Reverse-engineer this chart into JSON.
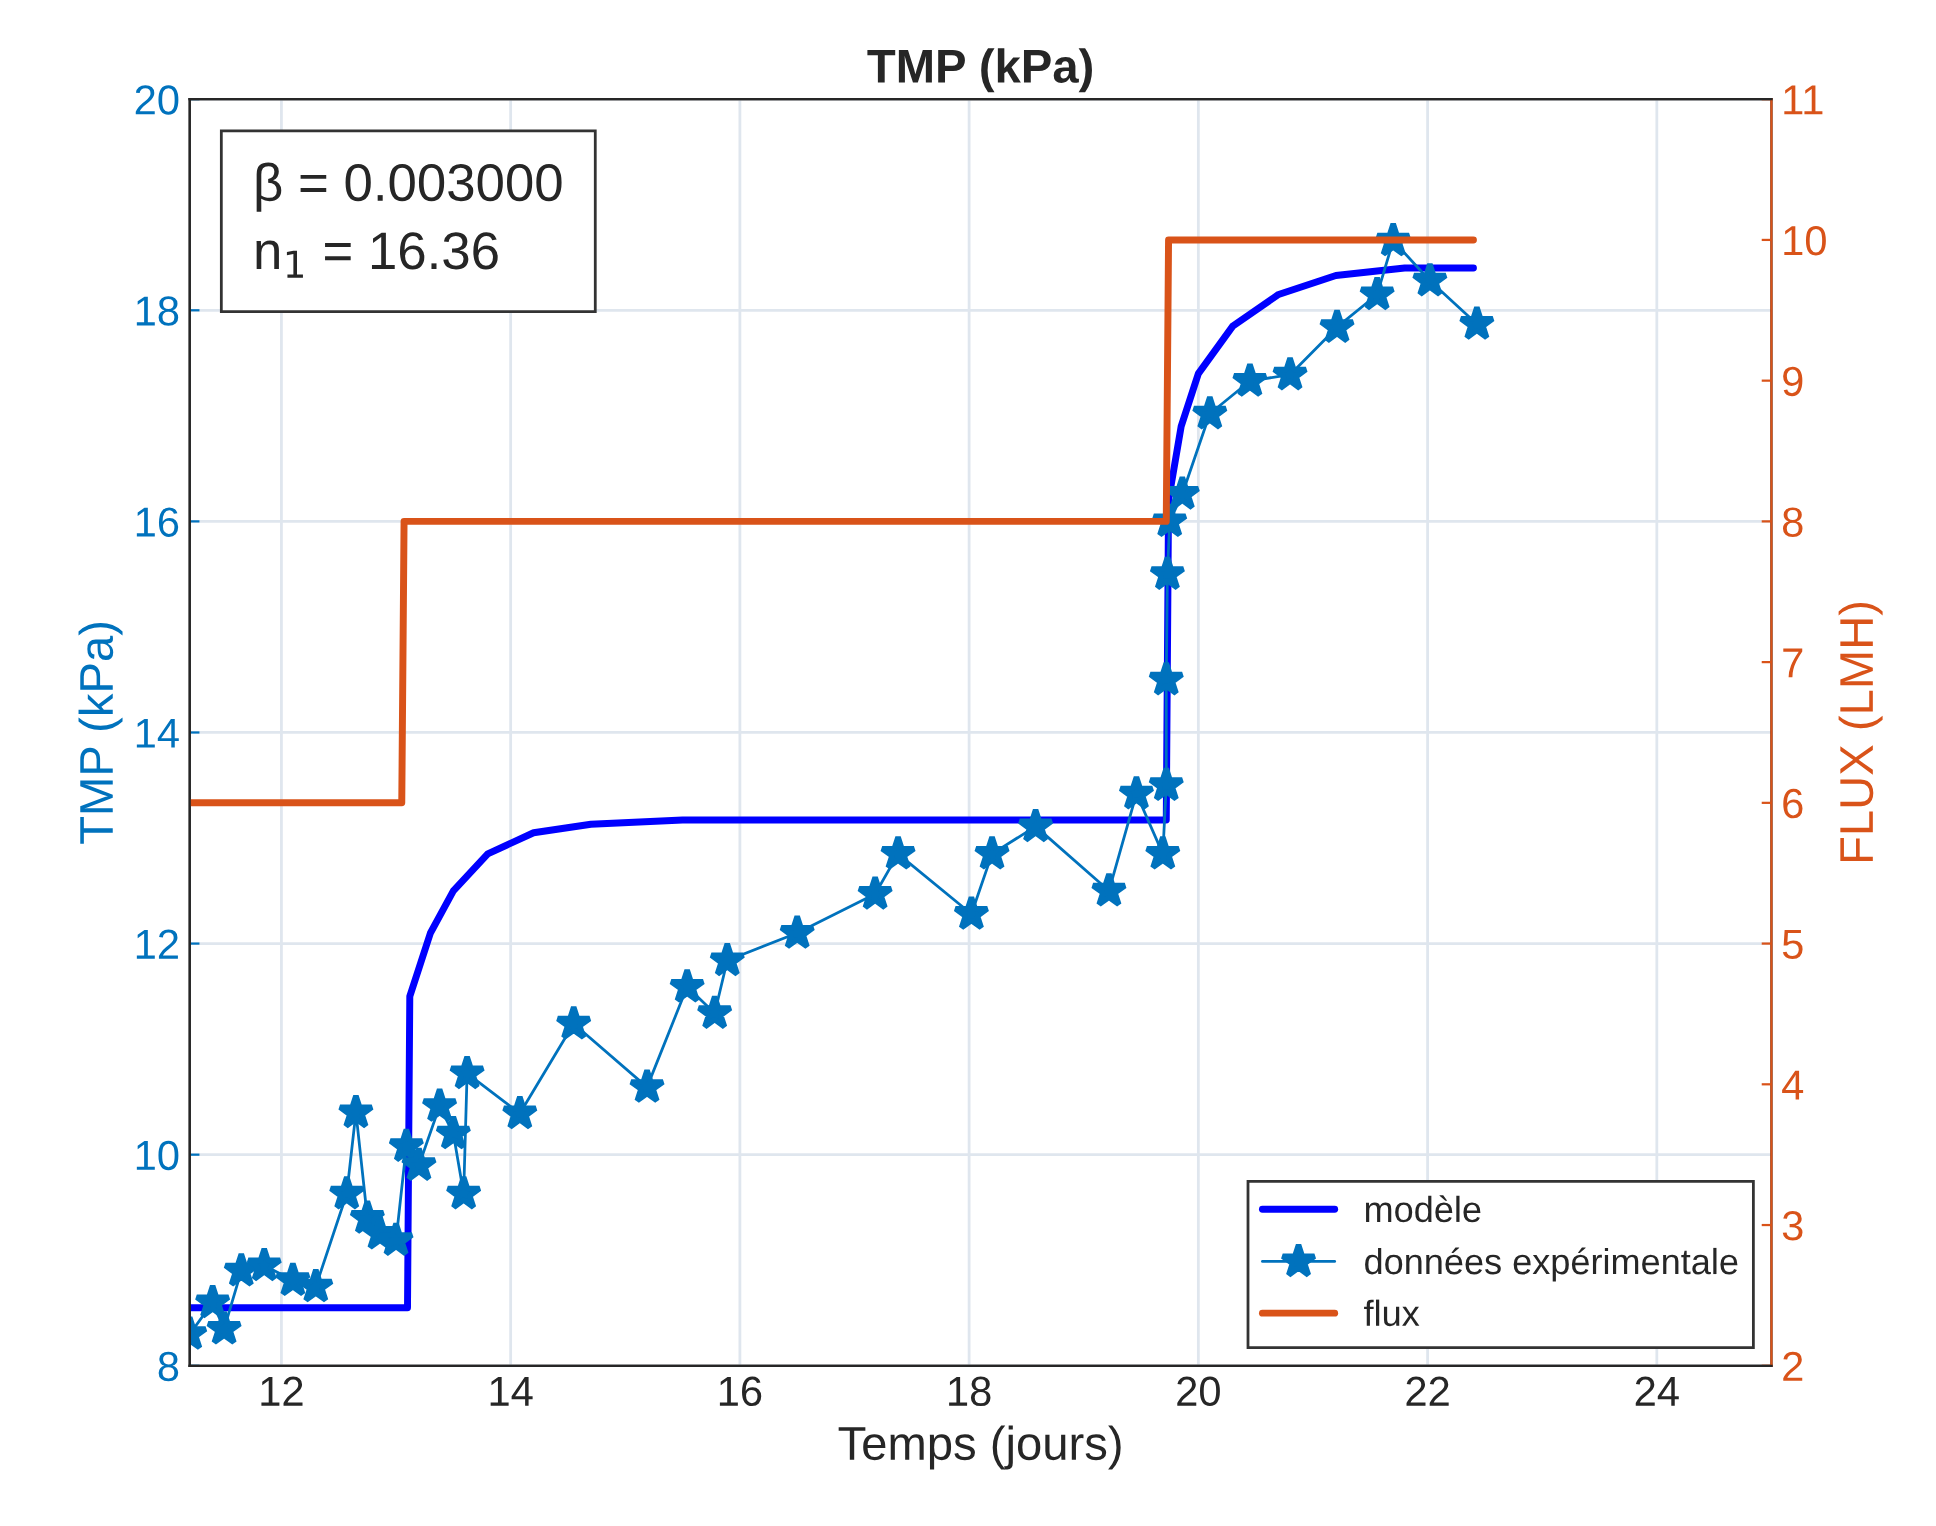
{
  "chart_data": {
    "type": "line",
    "title": "TMP (kPa)",
    "xlabel": "Temps (jours)",
    "ylabel": "TMP (kPa)",
    "y2label": "FLUX (LMH)",
    "xlim": [
      11.2,
      25
    ],
    "xticks": [
      12,
      14,
      16,
      18,
      20,
      22,
      24
    ],
    "ylim": [
      8,
      20
    ],
    "yticks": [
      8,
      10,
      12,
      14,
      16,
      18,
      20
    ],
    "y2lim": [
      2,
      11
    ],
    "y2ticks": [
      2,
      3,
      4,
      5,
      6,
      7,
      8,
      9,
      10,
      11
    ],
    "grid": true,
    "legend": "bottom right",
    "annotations": [
      "β = 0.003000",
      "n$_{1}$ = 16.36"
    ],
    "series": [
      {
        "name": "modèle",
        "color": "#0000ff",
        "marker": "none",
        "line_style": "solid",
        "x": [
          11.2,
          13.1,
          13.12,
          13.3,
          13.5,
          13.8,
          14.2,
          14.7,
          15.5,
          19.72,
          19.74,
          19.85,
          20.0,
          20.3,
          20.7,
          21.2,
          21.8,
          22.4
        ],
        "values": [
          8.55,
          8.55,
          11.5,
          12.1,
          12.5,
          12.85,
          13.05,
          13.13,
          13.17,
          13.17,
          16.2,
          16.9,
          17.4,
          17.85,
          18.15,
          18.33,
          18.4,
          18.4
        ]
      },
      {
        "name": "données expérimentale",
        "color": "#0072bd",
        "marker": "star",
        "line_style": "solid",
        "x": [
          11.2,
          11.4,
          11.5,
          11.65,
          11.85,
          12.1,
          12.3,
          12.57,
          12.65,
          12.75,
          12.86,
          13.0,
          13.09,
          13.2,
          13.38,
          13.5,
          13.59,
          13.62,
          14.08,
          14.55,
          15.19,
          15.54,
          15.78,
          15.89,
          16.5,
          17.18,
          17.38,
          18.02,
          18.2,
          18.58,
          19.22,
          19.46,
          19.69,
          19.72,
          19.72,
          19.73,
          19.75,
          19.86,
          20.1,
          20.45,
          20.8,
          21.21,
          21.56,
          21.7,
          22.02,
          22.43
        ],
        "values": [
          8.3,
          8.6,
          8.35,
          8.9,
          8.95,
          8.81,
          8.75,
          9.63,
          10.4,
          9.4,
          9.25,
          9.19,
          10.08,
          9.9,
          10.46,
          10.2,
          9.63,
          10.77,
          10.39,
          11.24,
          10.64,
          11.59,
          11.34,
          11.84,
          12.1,
          12.47,
          12.85,
          12.28,
          12.85,
          13.11,
          12.5,
          13.42,
          12.85,
          13.5,
          14.5,
          15.5,
          16.0,
          16.26,
          17.02,
          17.33,
          17.39,
          17.84,
          18.15,
          18.66,
          18.28,
          17.87
        ]
      },
      {
        "name": "flux",
        "color": "#d95319",
        "marker": "none",
        "line_style": "solid",
        "axis": "y2",
        "x": [
          11.2,
          13.05,
          13.07,
          19.72,
          19.74,
          22.4
        ],
        "values": [
          6,
          6,
          8,
          8,
          10,
          10
        ]
      }
    ]
  }
}
